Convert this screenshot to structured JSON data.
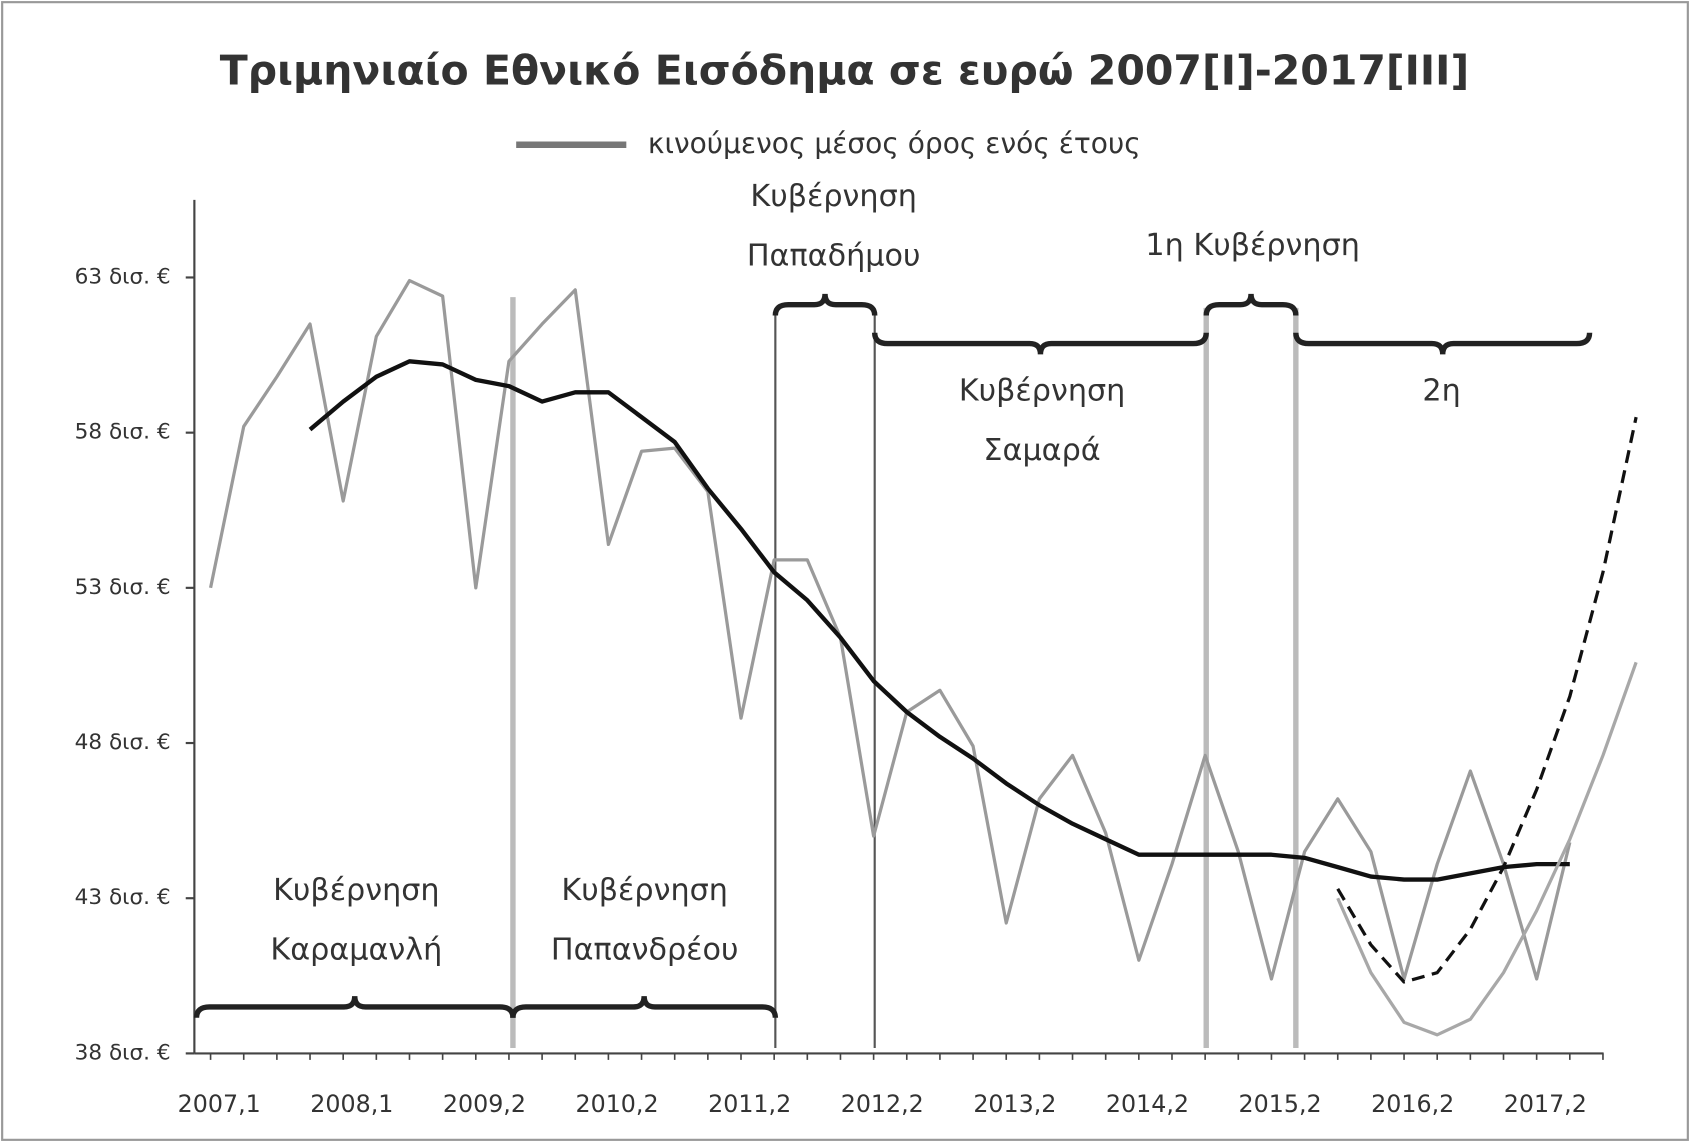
{
  "chart_data": {
    "type": "line",
    "title": "Τριμηνιαίο Εθνικό Εισόδημα σε ευρώ 2007[I]-2017[III]",
    "categories": [
      "2007,1",
      null,
      null,
      null,
      "2008,1",
      null,
      null,
      null,
      "2009,2",
      null,
      null,
      null,
      "2010,2",
      null,
      null,
      null,
      "2011,2",
      null,
      null,
      null,
      "2012,2",
      null,
      null,
      null,
      "2013,2",
      null,
      null,
      null,
      "2014,2",
      null,
      null,
      null,
      "2015,2",
      null,
      null,
      null,
      "2016,2",
      null,
      null,
      null,
      "2017,2",
      null,
      null,
      null
    ],
    "series": [
      {
        "color": "#9a9a9a",
        "values": [
          53.0,
          58.2,
          59.8,
          61.5,
          55.8,
          61.1,
          62.9,
          62.4,
          53.0,
          60.3,
          61.5,
          62.6,
          54.4,
          57.4,
          57.5,
          56.1,
          48.8,
          53.9,
          53.9,
          51.4,
          45.0,
          49.0,
          49.7,
          47.9,
          42.2,
          46.2,
          47.6,
          45.1,
          41.0,
          44.1,
          47.6,
          44.5,
          40.4,
          44.5,
          46.2,
          44.5,
          40.4,
          44.1,
          47.1,
          44.1,
          40.4,
          44.8,
          null,
          null
        ]
      },
      {
        "name": "κινούμενος μέσος όρος ενός έτους",
        "color": "#111111",
        "values": [
          null,
          null,
          null,
          58.1,
          59.0,
          59.8,
          60.3,
          60.2,
          59.7,
          59.5,
          59.0,
          59.3,
          59.3,
          58.5,
          57.7,
          56.2,
          54.9,
          53.5,
          52.6,
          51.4,
          50.0,
          49.0,
          48.2,
          47.5,
          46.7,
          46.0,
          45.4,
          44.9,
          44.4,
          44.4,
          44.4,
          44.4,
          44.4,
          44.3,
          44.0,
          43.7,
          43.6,
          43.6,
          43.8,
          44.0,
          44.1,
          44.1,
          null,
          null
        ]
      },
      {
        "color": "#111111",
        "dashed": true,
        "values": [
          null,
          null,
          null,
          null,
          null,
          null,
          null,
          null,
          null,
          null,
          null,
          null,
          null,
          null,
          null,
          null,
          null,
          null,
          null,
          null,
          null,
          null,
          null,
          null,
          null,
          null,
          null,
          null,
          null,
          null,
          null,
          null,
          null,
          null,
          43.3,
          41.5,
          40.3,
          40.6,
          42.0,
          44.0,
          46.5,
          49.5,
          53.5,
          58.5
        ]
      },
      {
        "color": "#a8a8a8",
        "values": [
          null,
          null,
          null,
          null,
          null,
          null,
          null,
          null,
          null,
          null,
          null,
          null,
          null,
          null,
          null,
          null,
          null,
          null,
          null,
          null,
          null,
          null,
          null,
          null,
          null,
          null,
          null,
          null,
          null,
          null,
          null,
          null,
          null,
          null,
          43.0,
          40.6,
          39.0,
          38.6,
          39.1,
          40.6,
          42.6,
          44.9,
          47.6,
          50.6
        ]
      }
    ],
    "ylim": [
      38,
      65.5
    ],
    "yticks": [
      {
        "value": 38,
        "label": "38 δισ. €"
      },
      {
        "value": 43,
        "label": "43 δισ. €"
      },
      {
        "value": 48,
        "label": "48 δισ. €"
      },
      {
        "value": 53,
        "label": "53 δισ. €"
      },
      {
        "value": 58,
        "label": "58 δισ. €"
      },
      {
        "value": 63,
        "label": "63 δισ. €"
      }
    ],
    "annotations": [
      {
        "lines": [
          "Κυβέρνηση",
          "Καραμανλή"
        ]
      },
      {
        "lines": [
          "Κυβέρνηση",
          "Παπανδρέου"
        ]
      },
      {
        "lines": [
          "Κυβέρνηση",
          "Παπαδήμου"
        ]
      },
      {
        "lines": [
          "Κυβέρνηση",
          "Σαμαρά"
        ]
      },
      {
        "lines": [
          "1η Κυβέρνηση"
        ]
      },
      {
        "lines": [
          "2η"
        ]
      }
    ]
  }
}
